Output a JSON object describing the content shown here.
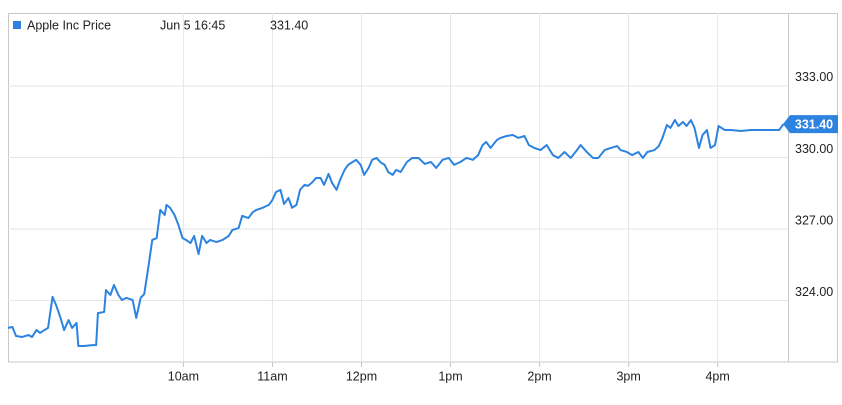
{
  "chart_data": {
    "type": "line",
    "legend_time": "Jun 5 16:45",
    "last_price": "331.40",
    "x": [
      8.03,
      8.08,
      8.12,
      8.19,
      8.26,
      8.3,
      8.35,
      8.39,
      8.44,
      8.48,
      8.53,
      8.57,
      8.62,
      8.66,
      8.71,
      8.75,
      8.8,
      8.82,
      8.88,
      8.98,
      9.02,
      9.04,
      9.11,
      9.13,
      9.18,
      9.22,
      9.27,
      9.31,
      9.36,
      9.43,
      9.47,
      9.52,
      9.56,
      9.61,
      9.65,
      9.7,
      9.74,
      9.79,
      9.81,
      9.85,
      9.9,
      9.94,
      9.99,
      10.03,
      10.08,
      10.12,
      10.17,
      10.21,
      10.26,
      10.3,
      10.37,
      10.44,
      10.51,
      10.55,
      10.62,
      10.66,
      10.73,
      10.78,
      10.82,
      10.89,
      10.96,
      11.0,
      11.04,
      11.09,
      11.13,
      11.18,
      11.22,
      11.27,
      11.31,
      11.36,
      11.4,
      11.45,
      11.49,
      11.54,
      11.58,
      11.63,
      11.67,
      11.72,
      11.76,
      11.81,
      11.85,
      11.9,
      11.94,
      11.99,
      12.03,
      12.08,
      12.12,
      12.17,
      12.21,
      12.26,
      12.3,
      12.35,
      12.39,
      12.44,
      12.51,
      12.57,
      12.64,
      12.71,
      12.78,
      12.84,
      12.91,
      12.98,
      13.04,
      13.11,
      13.18,
      13.25,
      13.31,
      13.36,
      13.4,
      13.45,
      13.52,
      13.56,
      13.63,
      13.7,
      13.76,
      13.83,
      13.88,
      13.94,
      14.01,
      14.08,
      14.15,
      14.21,
      14.28,
      14.35,
      14.42,
      14.46,
      14.53,
      14.6,
      14.66,
      14.73,
      14.8,
      14.87,
      14.91,
      14.98,
      15.04,
      15.11,
      15.16,
      15.21,
      15.29,
      15.34,
      15.38,
      15.43,
      15.47,
      15.52,
      15.56,
      15.61,
      15.65,
      15.7,
      15.74,
      15.79,
      15.83,
      15.88,
      15.92,
      15.97,
      16.01,
      16.08,
      16.15,
      16.26,
      16.37,
      16.48,
      16.6,
      16.69,
      16.74
    ],
    "series": [
      {
        "name": "Apple Inc Price",
        "color": "#2d83e0",
        "values": [
          322.85,
          322.89,
          322.51,
          322.47,
          322.55,
          322.47,
          322.76,
          322.64,
          322.76,
          322.85,
          324.15,
          323.81,
          323.27,
          322.76,
          323.18,
          322.85,
          323.06,
          322.09,
          322.09,
          322.13,
          322.13,
          323.47,
          323.52,
          324.44,
          324.23,
          324.65,
          324.23,
          324.02,
          324.11,
          324.02,
          323.27,
          324.11,
          324.27,
          325.49,
          326.54,
          326.62,
          327.8,
          327.59,
          328.01,
          327.89,
          327.59,
          327.21,
          326.62,
          326.54,
          326.41,
          326.71,
          325.95,
          326.71,
          326.41,
          326.54,
          326.45,
          326.54,
          326.71,
          326.96,
          327.04,
          327.55,
          327.46,
          327.71,
          327.8,
          327.89,
          328.01,
          328.22,
          328.55,
          328.64,
          328.05,
          328.3,
          327.89,
          328.01,
          328.64,
          328.85,
          328.81,
          328.97,
          329.14,
          329.14,
          328.85,
          329.31,
          328.93,
          328.64,
          329.06,
          329.48,
          329.69,
          329.81,
          329.9,
          329.69,
          329.27,
          329.56,
          329.9,
          329.98,
          329.81,
          329.69,
          329.39,
          329.27,
          329.48,
          329.39,
          329.81,
          329.98,
          329.98,
          329.73,
          329.81,
          329.56,
          329.9,
          329.98,
          329.69,
          329.81,
          329.98,
          329.9,
          330.1,
          330.52,
          330.65,
          330.4,
          330.73,
          330.82,
          330.9,
          330.94,
          330.82,
          330.9,
          330.52,
          330.4,
          330.31,
          330.52,
          330.1,
          329.98,
          330.23,
          329.98,
          330.31,
          330.52,
          330.23,
          329.98,
          329.98,
          330.31,
          330.4,
          330.48,
          330.31,
          330.23,
          330.1,
          330.23,
          329.98,
          330.23,
          330.31,
          330.48,
          330.82,
          331.36,
          331.24,
          331.57,
          331.32,
          331.49,
          331.32,
          331.57,
          331.24,
          330.4,
          330.94,
          331.15,
          330.4,
          330.52,
          331.32,
          331.15,
          331.15,
          331.11,
          331.15,
          331.15,
          331.15,
          331.15,
          331.4
        ]
      }
    ],
    "xlim": [
      8.03,
      16.79
    ],
    "xticks": [
      {
        "value": 10,
        "label": "10am"
      },
      {
        "value": 11,
        "label": "11am"
      },
      {
        "value": 12,
        "label": "12pm"
      },
      {
        "value": 13,
        "label": "1pm"
      },
      {
        "value": 14,
        "label": "2pm"
      },
      {
        "value": 15,
        "label": "3pm"
      },
      {
        "value": 16,
        "label": "4pm"
      }
    ],
    "ylim": [
      321.42,
      336.06
    ],
    "yticks": [
      {
        "value": 324,
        "label": "324.00"
      },
      {
        "value": 327,
        "label": "327.00"
      },
      {
        "value": 330,
        "label": "330.00"
      },
      {
        "value": 333,
        "label": "333.00"
      }
    ],
    "grid": true
  }
}
